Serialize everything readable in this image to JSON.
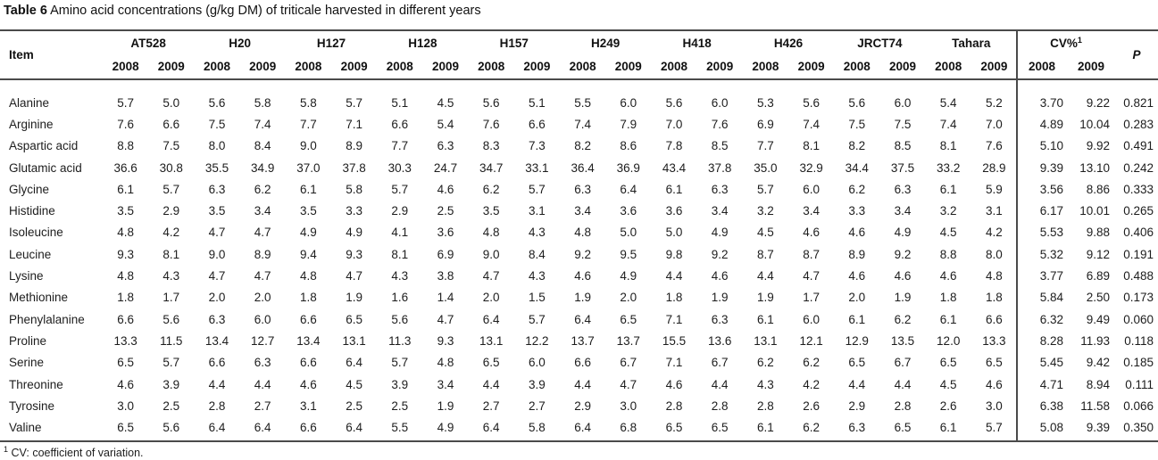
{
  "title": {
    "label": "Table 6",
    "text": "Amino acid concentrations (g/kg DM) of triticale harvested in different years"
  },
  "table": {
    "item_header": "Item",
    "year_labels": [
      "2008",
      "2009"
    ],
    "varieties": [
      "AT528",
      "H20",
      "H127",
      "H128",
      "H157",
      "H249",
      "H418",
      "H426",
      "JRCT74",
      "Tahara"
    ],
    "cv_header": {
      "base": "CV%",
      "sup": "1"
    },
    "p_header": "P",
    "rows": [
      {
        "item": "Alanine",
        "values": [
          "5.7",
          "5.0",
          "5.6",
          "5.8",
          "5.8",
          "5.7",
          "5.1",
          "4.5",
          "5.6",
          "5.1",
          "5.5",
          "6.0",
          "5.6",
          "6.0",
          "5.3",
          "5.6",
          "5.6",
          "6.0",
          "5.4",
          "5.2"
        ],
        "cv": [
          "3.70",
          "9.22"
        ],
        "p": "0.821"
      },
      {
        "item": "Arginine",
        "values": [
          "7.6",
          "6.6",
          "7.5",
          "7.4",
          "7.7",
          "7.1",
          "6.6",
          "5.4",
          "7.6",
          "6.6",
          "7.4",
          "7.9",
          "7.0",
          "7.6",
          "6.9",
          "7.4",
          "7.5",
          "7.5",
          "7.4",
          "7.0"
        ],
        "cv": [
          "4.89",
          "10.04"
        ],
        "p": "0.283"
      },
      {
        "item": "Aspartic acid",
        "values": [
          "8.8",
          "7.5",
          "8.0",
          "8.4",
          "9.0",
          "8.9",
          "7.7",
          "6.3",
          "8.3",
          "7.3",
          "8.2",
          "8.6",
          "7.8",
          "8.5",
          "7.7",
          "8.1",
          "8.2",
          "8.5",
          "8.1",
          "7.6"
        ],
        "cv": [
          "5.10",
          "9.92"
        ],
        "p": "0.491"
      },
      {
        "item": "Glutamic acid",
        "values": [
          "36.6",
          "30.8",
          "35.5",
          "34.9",
          "37.0",
          "37.8",
          "30.3",
          "24.7",
          "34.7",
          "33.1",
          "36.4",
          "36.9",
          "43.4",
          "37.8",
          "35.0",
          "32.9",
          "34.4",
          "37.5",
          "33.2",
          "28.9"
        ],
        "cv": [
          "9.39",
          "13.10"
        ],
        "p": "0.242"
      },
      {
        "item": "Glycine",
        "values": [
          "6.1",
          "5.7",
          "6.3",
          "6.2",
          "6.1",
          "5.8",
          "5.7",
          "4.6",
          "6.2",
          "5.7",
          "6.3",
          "6.4",
          "6.1",
          "6.3",
          "5.7",
          "6.0",
          "6.2",
          "6.3",
          "6.1",
          "5.9"
        ],
        "cv": [
          "3.56",
          "8.86"
        ],
        "p": "0.333"
      },
      {
        "item": "Histidine",
        "values": [
          "3.5",
          "2.9",
          "3.5",
          "3.4",
          "3.5",
          "3.3",
          "2.9",
          "2.5",
          "3.5",
          "3.1",
          "3.4",
          "3.6",
          "3.6",
          "3.4",
          "3.2",
          "3.4",
          "3.3",
          "3.4",
          "3.2",
          "3.1"
        ],
        "cv": [
          "6.17",
          "10.01"
        ],
        "p": "0.265"
      },
      {
        "item": "Isoleucine",
        "values": [
          "4.8",
          "4.2",
          "4.7",
          "4.7",
          "4.9",
          "4.9",
          "4.1",
          "3.6",
          "4.8",
          "4.3",
          "4.8",
          "5.0",
          "5.0",
          "4.9",
          "4.5",
          "4.6",
          "4.6",
          "4.9",
          "4.5",
          "4.2"
        ],
        "cv": [
          "5.53",
          "9.88"
        ],
        "p": "0.406"
      },
      {
        "item": "Leucine",
        "values": [
          "9.3",
          "8.1",
          "9.0",
          "8.9",
          "9.4",
          "9.3",
          "8.1",
          "6.9",
          "9.0",
          "8.4",
          "9.2",
          "9.5",
          "9.8",
          "9.2",
          "8.7",
          "8.7",
          "8.9",
          "9.2",
          "8.8",
          "8.0"
        ],
        "cv": [
          "5.32",
          "9.12"
        ],
        "p": "0.191"
      },
      {
        "item": "Lysine",
        "values": [
          "4.8",
          "4.3",
          "4.7",
          "4.7",
          "4.8",
          "4.7",
          "4.3",
          "3.8",
          "4.7",
          "4.3",
          "4.6",
          "4.9",
          "4.4",
          "4.6",
          "4.4",
          "4.7",
          "4.6",
          "4.6",
          "4.6",
          "4.8"
        ],
        "cv": [
          "3.77",
          "6.89"
        ],
        "p": "0.488"
      },
      {
        "item": "Methionine",
        "values": [
          "1.8",
          "1.7",
          "2.0",
          "2.0",
          "1.8",
          "1.9",
          "1.6",
          "1.4",
          "2.0",
          "1.5",
          "1.9",
          "2.0",
          "1.8",
          "1.9",
          "1.9",
          "1.7",
          "2.0",
          "1.9",
          "1.8",
          "1.8"
        ],
        "cv": [
          "5.84",
          "2.50"
        ],
        "p": "0.173"
      },
      {
        "item": "Phenylalanine",
        "values": [
          "6.6",
          "5.6",
          "6.3",
          "6.0",
          "6.6",
          "6.5",
          "5.6",
          "4.7",
          "6.4",
          "5.7",
          "6.4",
          "6.5",
          "7.1",
          "6.3",
          "6.1",
          "6.0",
          "6.1",
          "6.2",
          "6.1",
          "6.6"
        ],
        "cv": [
          "6.32",
          "9.49"
        ],
        "p": "0.060"
      },
      {
        "item": "Proline",
        "values": [
          "13.3",
          "11.5",
          "13.4",
          "12.7",
          "13.4",
          "13.1",
          "11.3",
          "9.3",
          "13.1",
          "12.2",
          "13.7",
          "13.7",
          "15.5",
          "13.6",
          "13.1",
          "12.1",
          "12.9",
          "13.5",
          "12.0",
          "13.3"
        ],
        "cv": [
          "8.28",
          "11.93"
        ],
        "p": "0.118"
      },
      {
        "item": "Serine",
        "values": [
          "6.5",
          "5.7",
          "6.6",
          "6.3",
          "6.6",
          "6.4",
          "5.7",
          "4.8",
          "6.5",
          "6.0",
          "6.6",
          "6.7",
          "7.1",
          "6.7",
          "6.2",
          "6.2",
          "6.5",
          "6.7",
          "6.5",
          "6.5"
        ],
        "cv": [
          "5.45",
          "9.42"
        ],
        "p": "0.185"
      },
      {
        "item": "Threonine",
        "values": [
          "4.6",
          "3.9",
          "4.4",
          "4.4",
          "4.6",
          "4.5",
          "3.9",
          "3.4",
          "4.4",
          "3.9",
          "4.4",
          "4.7",
          "4.6",
          "4.4",
          "4.3",
          "4.2",
          "4.4",
          "4.4",
          "4.5",
          "4.6"
        ],
        "cv": [
          "4.71",
          "8.94"
        ],
        "p": "0.111"
      },
      {
        "item": "Tyrosine",
        "values": [
          "3.0",
          "2.5",
          "2.8",
          "2.7",
          "3.1",
          "2.5",
          "2.5",
          "1.9",
          "2.7",
          "2.7",
          "2.9",
          "3.0",
          "2.8",
          "2.8",
          "2.8",
          "2.6",
          "2.9",
          "2.8",
          "2.6",
          "3.0"
        ],
        "cv": [
          "6.38",
          "11.58"
        ],
        "p": "0.066"
      },
      {
        "item": "Valine",
        "values": [
          "6.5",
          "5.6",
          "6.4",
          "6.4",
          "6.6",
          "6.4",
          "5.5",
          "4.9",
          "6.4",
          "5.8",
          "6.4",
          "6.8",
          "6.5",
          "6.5",
          "6.1",
          "6.2",
          "6.3",
          "6.5",
          "6.1",
          "5.7"
        ],
        "cv": [
          "5.08",
          "9.39"
        ],
        "p": "0.350"
      }
    ]
  },
  "footnote": {
    "sup": "1",
    "text": "CV: coefficient of variation."
  }
}
